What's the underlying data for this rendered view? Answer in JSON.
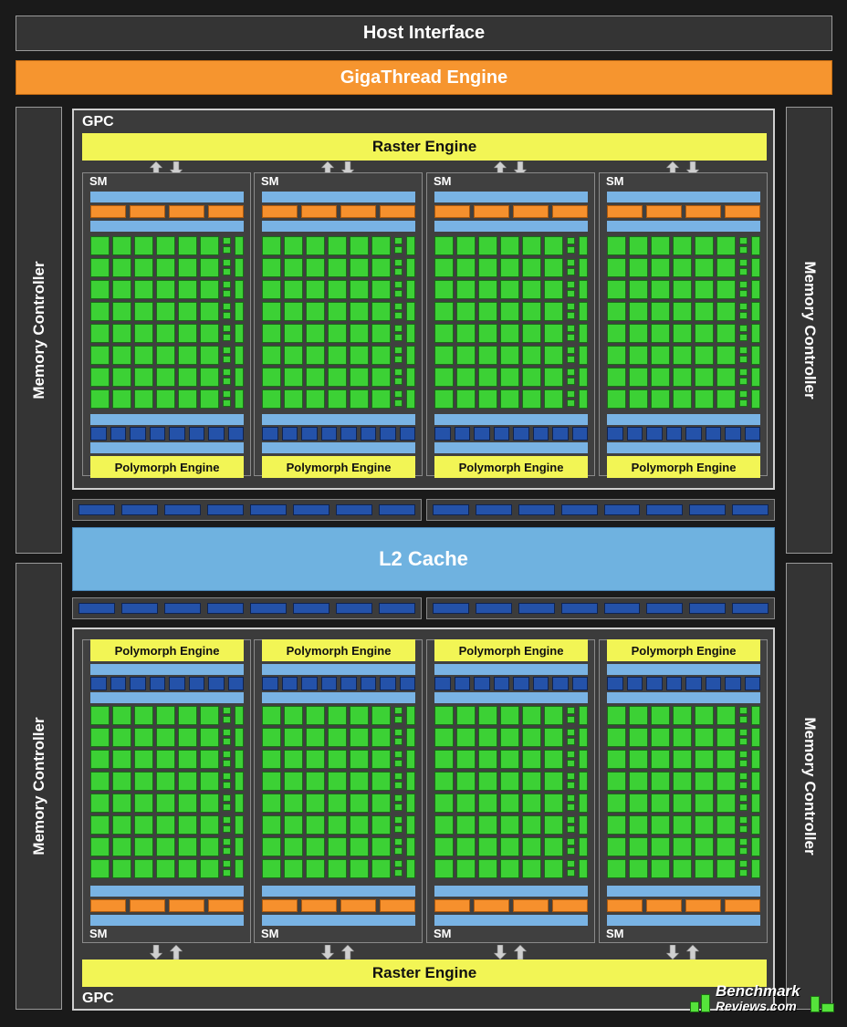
{
  "host_interface": "Host Interface",
  "gigathread_engine": "GigaThread Engine",
  "memory_controller": "Memory Controller",
  "gpc_label": "GPC",
  "raster_engine": "Raster Engine",
  "sm_label": "SM",
  "polymorph_engine": "Polymorph Engine",
  "l2_cache": "L2 Cache",
  "logo": {
    "line1": "Benchmark",
    "line2": "Reviews.com"
  },
  "colors": {
    "host_bar": "#343434",
    "gigathread": "#f6952f",
    "raster": "#f2f555",
    "cuda_core": "#3cd135",
    "cache": "#79b3e4",
    "unit_orange": "#f6902d",
    "unit_blue": "#2452a9",
    "l2": "#6fb2e0"
  },
  "icons": {
    "arrow_up": "arrow-up-icon",
    "arrow_down": "arrow-down-icon"
  }
}
